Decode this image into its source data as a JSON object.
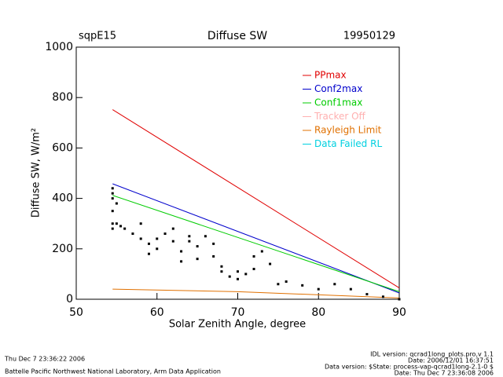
{
  "chart_data": {
    "type": "line",
    "site": "sqpE15",
    "title": "Diffuse SW",
    "date": "19950129",
    "xlabel": "Solar Zenith Angle, degree",
    "ylabel": "Diffuse SW, W/m²",
    "xlim": [
      50,
      90
    ],
    "ylim": [
      0,
      1000
    ],
    "xticks": [
      50,
      60,
      70,
      80,
      90
    ],
    "yticks": [
      0,
      200,
      400,
      600,
      800,
      1000
    ],
    "series": [
      {
        "name": "PPmax",
        "color": "#e00000",
        "x": [
          54.5,
          90
        ],
        "values": [
          752,
          45
        ]
      },
      {
        "name": "Conf2max",
        "color": "#0000cc",
        "x": [
          54.5,
          90
        ],
        "values": [
          458,
          25
        ]
      },
      {
        "name": "Conf1max",
        "color": "#00cc00",
        "x": [
          54.5,
          90
        ],
        "values": [
          412,
          30
        ]
      },
      {
        "name": "Tracker Off",
        "color": "#ffb0b0",
        "x": [],
        "values": []
      },
      {
        "name": "Rayleigh Limit",
        "color": "#e07000",
        "x": [
          54.5,
          70,
          90
        ],
        "values": [
          40,
          30,
          5
        ]
      },
      {
        "name": "Data Failed RL",
        "color": "#00d0e0",
        "x": [],
        "values": []
      }
    ],
    "observed": {
      "color": "#000000",
      "x": [
        54.5,
        54.5,
        54.5,
        54.5,
        54.5,
        54.5,
        55,
        55,
        55.5,
        56,
        57,
        58,
        58,
        59,
        59,
        60,
        60,
        61,
        62,
        62,
        63,
        63,
        64,
        64,
        65,
        65,
        66,
        67,
        67,
        68,
        68,
        69,
        70,
        70,
        71,
        72,
        72,
        73,
        74,
        75,
        76,
        78,
        80,
        82,
        84,
        86,
        88,
        90
      ],
      "values": [
        280,
        300,
        350,
        420,
        440,
        400,
        300,
        380,
        290,
        280,
        260,
        240,
        300,
        180,
        220,
        200,
        240,
        260,
        280,
        230,
        190,
        150,
        250,
        230,
        210,
        160,
        250,
        220,
        170,
        130,
        110,
        90,
        110,
        80,
        100,
        170,
        120,
        190,
        140,
        60,
        70,
        55,
        40,
        60,
        40,
        20,
        10,
        0
      ]
    },
    "footer_left": [
      "Thu Dec  7 23:36:22 2006",
      "Battelle Pacific Northwest National Laboratory, Arm Data Application"
    ],
    "footer_right": [
      "IDL version: qcrad1long_plots.pro,v 1.1",
      "Date: 2006/12/01 16:37:51",
      "Data version: $State: process-vap-qcrad1long-2.1-0 $",
      "Date: Thu Dec  7 23:36:08 2006"
    ]
  }
}
